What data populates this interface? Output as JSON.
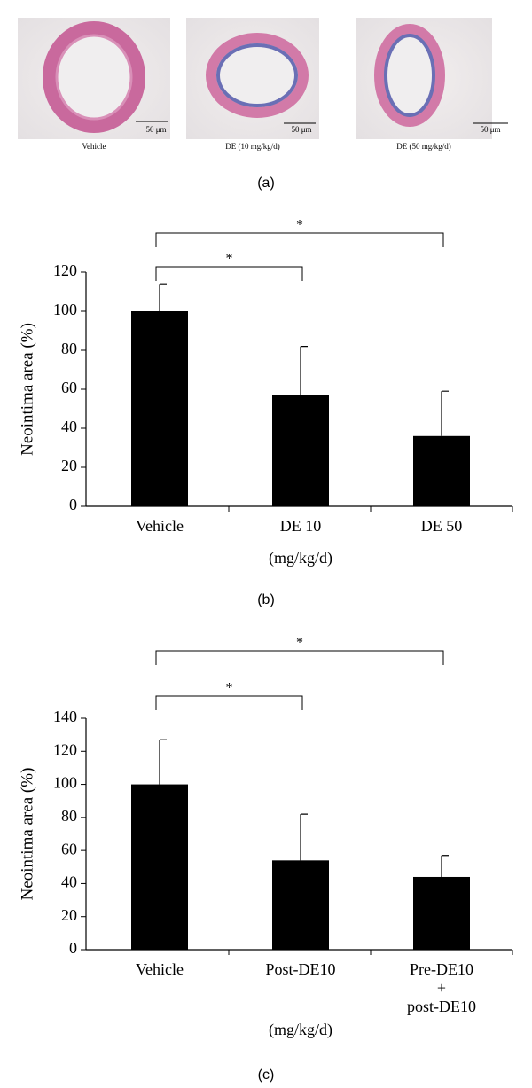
{
  "panel_a": {
    "images": [
      {
        "label": "Vehicle",
        "scale": "50 μm"
      },
      {
        "label": "DE (10 mg/kg/d)",
        "scale": "50 μm"
      },
      {
        "label": "DE (50 mg/kg/d)",
        "scale": "50 μm"
      }
    ],
    "panel_label": "(a)"
  },
  "chart_data": [
    {
      "type": "bar",
      "panel_label": "(b)",
      "y_label": "Neointima area (%)",
      "x_label": "(mg/kg/d)",
      "categories": [
        "Vehicle",
        "DE 10",
        "DE 50"
      ],
      "values": [
        100,
        57,
        36
      ],
      "errors": [
        14,
        25,
        23
      ],
      "color": "#000000",
      "ylim": [
        0,
        120
      ],
      "yticks": [
        0,
        20,
        40,
        60,
        80,
        100,
        120
      ],
      "comparisons": [
        {
          "groups": [
            0,
            1
          ],
          "label": "*"
        },
        {
          "groups": [
            0,
            2
          ],
          "label": "*"
        }
      ]
    },
    {
      "type": "bar",
      "panel_label": "(c)",
      "y_label": "Neointima area (%)",
      "x_label": "(mg/kg/d)",
      "categories": [
        "Vehicle",
        "Post-DE10",
        "Pre-DE10\n+\npost-DE10"
      ],
      "values": [
        100,
        54,
        44
      ],
      "errors": [
        27,
        28,
        13
      ],
      "color": "#000000",
      "ylim": [
        0,
        140
      ],
      "yticks": [
        0,
        20,
        40,
        60,
        80,
        100,
        120,
        140
      ],
      "comparisons": [
        {
          "groups": [
            0,
            1
          ],
          "label": "*"
        },
        {
          "groups": [
            0,
            2
          ],
          "label": "*"
        }
      ]
    }
  ]
}
